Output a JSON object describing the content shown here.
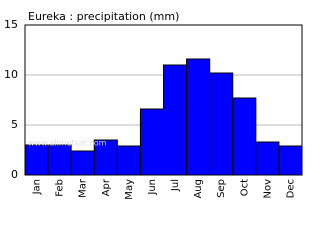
{
  "chart_data": {
    "type": "bar",
    "title": "Eureka : precipitation (mm)",
    "watermark": "www.allmetsat.com",
    "categories": [
      "Jan",
      "Feb",
      "Mar",
      "Apr",
      "May",
      "Jun",
      "Jul",
      "Aug",
      "Sep",
      "Oct",
      "Nov",
      "Dec"
    ],
    "values": [
      3,
      3,
      2.4,
      3.5,
      2.9,
      6.6,
      11,
      11.6,
      10.2,
      7.7,
      3.3,
      2.9
    ],
    "color": "#0000ff",
    "ylim": [
      0,
      15
    ],
    "yticks": [
      0,
      5,
      10,
      15
    ],
    "grid": true
  }
}
